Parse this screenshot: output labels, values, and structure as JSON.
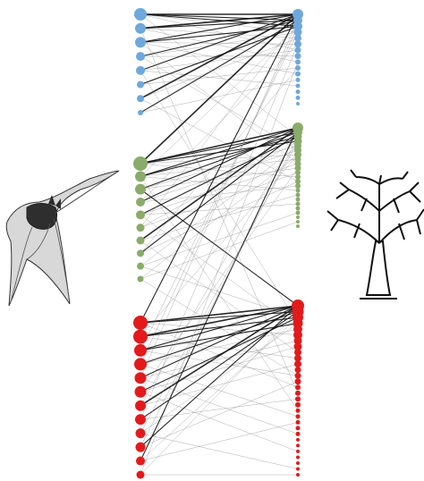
{
  "diagram": {
    "type": "bipartite-network",
    "left_group_label": "bats",
    "right_group_label": "plants",
    "left_icon": "bat-illustration-icon",
    "right_icon": "tree-illustration-icon",
    "modules": [
      {
        "name": "module-blue",
        "color": "#6fa8dc",
        "bats": [
          7,
          6,
          6,
          5,
          5,
          4,
          4,
          3
        ],
        "plants": [
          6,
          5,
          5,
          4.5,
          4,
          4,
          3.5,
          3.5,
          3,
          3,
          3,
          2.5,
          2.5,
          2.5,
          2.5,
          2
        ]
      },
      {
        "name": "module-green",
        "color": "#8aab6a",
        "bats": [
          8,
          6,
          6,
          5,
          5,
          4.5,
          4.5,
          4,
          4,
          3.5
        ],
        "plants": [
          6,
          5,
          4.5,
          4.5,
          4,
          4,
          4,
          3.5,
          3.5,
          3.5,
          3,
          3,
          3,
          3,
          2.5,
          2.5,
          2.5,
          2.5,
          2.5,
          2.5,
          2,
          2,
          2
        ]
      },
      {
        "name": "module-red",
        "color": "#e31a1c",
        "bats": [
          8,
          8,
          7,
          7,
          6.5,
          6.5,
          6,
          6,
          5.5,
          5.5,
          5,
          4.5
        ],
        "plants": [
          7,
          6.5,
          6,
          5.5,
          5,
          5,
          4.5,
          4.5,
          4,
          4,
          4,
          3.5,
          3.5,
          3.5,
          3,
          3,
          3,
          3,
          2.5,
          2.5,
          2.5,
          2.5,
          2.5,
          2,
          2,
          2,
          2,
          2,
          2,
          2
        ]
      }
    ],
    "interactions": [
      [
        0,
        0,
        0,
        0,
        3
      ],
      [
        0,
        0,
        0,
        1,
        2
      ],
      [
        0,
        0,
        0,
        2,
        2
      ],
      [
        0,
        0,
        0,
        3,
        1
      ],
      [
        0,
        0,
        0,
        6,
        1
      ],
      [
        0,
        1,
        0,
        0,
        3
      ],
      [
        0,
        1,
        0,
        1,
        2
      ],
      [
        0,
        1,
        0,
        4,
        1
      ],
      [
        0,
        1,
        0,
        8,
        1
      ],
      [
        0,
        2,
        0,
        0,
        2
      ],
      [
        0,
        2,
        0,
        2,
        2
      ],
      [
        0,
        2,
        0,
        5,
        1
      ],
      [
        0,
        2,
        0,
        10,
        1
      ],
      [
        0,
        3,
        0,
        1,
        2
      ],
      [
        0,
        3,
        0,
        3,
        1
      ],
      [
        0,
        3,
        0,
        7,
        1
      ],
      [
        0,
        4,
        0,
        0,
        2
      ],
      [
        0,
        4,
        0,
        6,
        1
      ],
      [
        0,
        4,
        0,
        12,
        1
      ],
      [
        0,
        5,
        0,
        2,
        2
      ],
      [
        0,
        5,
        0,
        9,
        1
      ],
      [
        0,
        6,
        0,
        0,
        3
      ],
      [
        0,
        6,
        0,
        4,
        1
      ],
      [
        0,
        7,
        0,
        1,
        2
      ],
      [
        0,
        7,
        0,
        11,
        1
      ],
      [
        0,
        0,
        1,
        2,
        1
      ],
      [
        0,
        2,
        1,
        8,
        1
      ],
      [
        0,
        4,
        2,
        3,
        1
      ],
      [
        0,
        6,
        1,
        12,
        1
      ],
      [
        0,
        1,
        2,
        15,
        1
      ],
      [
        0,
        3,
        1,
        5,
        1
      ],
      [
        1,
        0,
        1,
        0,
        3
      ],
      [
        1,
        0,
        1,
        1,
        2
      ],
      [
        1,
        0,
        1,
        3,
        2
      ],
      [
        1,
        0,
        1,
        6,
        1
      ],
      [
        1,
        0,
        1,
        11,
        1
      ],
      [
        1,
        1,
        1,
        0,
        2
      ],
      [
        1,
        1,
        1,
        2,
        2
      ],
      [
        1,
        1,
        1,
        7,
        1
      ],
      [
        1,
        1,
        1,
        14,
        1
      ],
      [
        1,
        2,
        1,
        1,
        2
      ],
      [
        1,
        2,
        1,
        4,
        1
      ],
      [
        1,
        2,
        1,
        9,
        1
      ],
      [
        1,
        3,
        1,
        0,
        2
      ],
      [
        1,
        3,
        1,
        5,
        1
      ],
      [
        1,
        3,
        1,
        13,
        1
      ],
      [
        1,
        4,
        1,
        2,
        2
      ],
      [
        1,
        4,
        1,
        8,
        1
      ],
      [
        1,
        4,
        1,
        17,
        1
      ],
      [
        1,
        5,
        1,
        3,
        1
      ],
      [
        1,
        5,
        1,
        10,
        1
      ],
      [
        1,
        6,
        1,
        0,
        3
      ],
      [
        1,
        6,
        1,
        15,
        1
      ],
      [
        1,
        7,
        1,
        1,
        2
      ],
      [
        1,
        7,
        1,
        12,
        1
      ],
      [
        1,
        8,
        1,
        4,
        1
      ],
      [
        1,
        8,
        1,
        19,
        1
      ],
      [
        1,
        9,
        1,
        6,
        1
      ],
      [
        1,
        9,
        1,
        21,
        1
      ],
      [
        1,
        0,
        0,
        0,
        3
      ],
      [
        1,
        1,
        0,
        2,
        1
      ],
      [
        1,
        3,
        0,
        5,
        1
      ],
      [
        1,
        5,
        0,
        1,
        1
      ],
      [
        1,
        7,
        0,
        9,
        1
      ],
      [
        1,
        2,
        2,
        0,
        2
      ],
      [
        1,
        4,
        2,
        4,
        1
      ],
      [
        1,
        6,
        2,
        8,
        1
      ],
      [
        1,
        8,
        2,
        2,
        1
      ],
      [
        1,
        9,
        2,
        12,
        1
      ],
      [
        1,
        1,
        2,
        18,
        1
      ],
      [
        2,
        0,
        2,
        0,
        3
      ],
      [
        2,
        0,
        2,
        1,
        2
      ],
      [
        2,
        0,
        2,
        5,
        1
      ],
      [
        2,
        0,
        2,
        14,
        1
      ],
      [
        2,
        1,
        2,
        0,
        3
      ],
      [
        2,
        1,
        2,
        2,
        2
      ],
      [
        2,
        1,
        2,
        9,
        1
      ],
      [
        2,
        2,
        2,
        0,
        2
      ],
      [
        2,
        2,
        2,
        3,
        2
      ],
      [
        2,
        2,
        2,
        12,
        1
      ],
      [
        2,
        3,
        2,
        1,
        2
      ],
      [
        2,
        3,
        2,
        4,
        1
      ],
      [
        2,
        3,
        2,
        19,
        1
      ],
      [
        2,
        4,
        2,
        0,
        2
      ],
      [
        2,
        4,
        2,
        6,
        1
      ],
      [
        2,
        4,
        2,
        22,
        1
      ],
      [
        2,
        5,
        2,
        2,
        2
      ],
      [
        2,
        5,
        2,
        7,
        1
      ],
      [
        2,
        5,
        2,
        25,
        1
      ],
      [
        2,
        6,
        2,
        0,
        3
      ],
      [
        2,
        6,
        2,
        10,
        1
      ],
      [
        2,
        7,
        2,
        1,
        2
      ],
      [
        2,
        7,
        2,
        16,
        1
      ],
      [
        2,
        8,
        2,
        3,
        1
      ],
      [
        2,
        8,
        2,
        28,
        1
      ],
      [
        2,
        9,
        2,
        0,
        2
      ],
      [
        2,
        9,
        2,
        13,
        1
      ],
      [
        2,
        10,
        2,
        2,
        1
      ],
      [
        2,
        10,
        2,
        20,
        1
      ],
      [
        2,
        11,
        2,
        1,
        1
      ],
      [
        2,
        11,
        2,
        29,
        1
      ],
      [
        2,
        0,
        0,
        0,
        2
      ],
      [
        2,
        2,
        0,
        3,
        1
      ],
      [
        2,
        4,
        0,
        1,
        1
      ],
      [
        2,
        6,
        1,
        1,
        1
      ],
      [
        2,
        8,
        1,
        3,
        1
      ],
      [
        2,
        10,
        1,
        0,
        2
      ],
      [
        2,
        1,
        1,
        6,
        1
      ],
      [
        2,
        3,
        0,
        2,
        1
      ],
      [
        2,
        5,
        1,
        9,
        1
      ],
      [
        2,
        7,
        0,
        5,
        1
      ],
      [
        2,
        9,
        1,
        2,
        1
      ],
      [
        2,
        11,
        0,
        8,
        1
      ]
    ]
  }
}
